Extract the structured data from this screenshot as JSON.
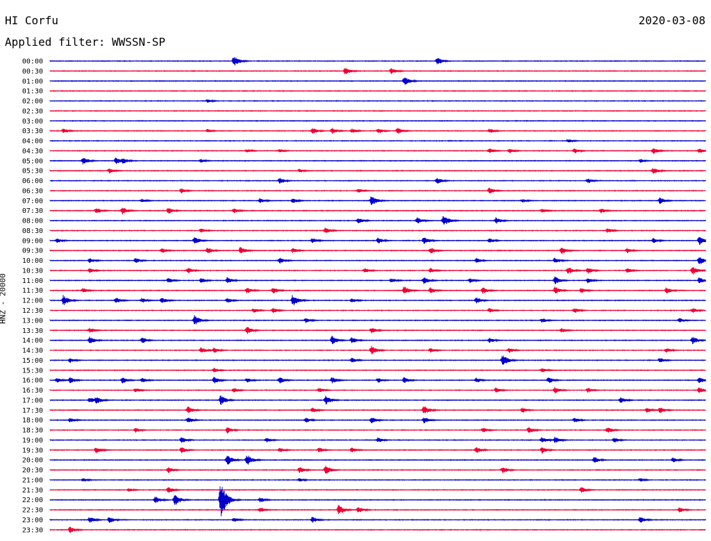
{
  "header": {
    "station": "HI Corfu",
    "date": "2020-03-08",
    "filter": "Applied filter: WWSSN-SP",
    "channel": "HNZ - 20000"
  },
  "chart_data": {
    "type": "line",
    "title": "HI Corfu",
    "subtitle": "Applied filter: WWSSN-SP",
    "date": "2020-03-08",
    "ylabel": "HNZ - 20000",
    "row_labels": [
      "00:00",
      "00:30",
      "01:00",
      "01:30",
      "02:00",
      "02:30",
      "03:00",
      "03:30",
      "04:00",
      "04:30",
      "05:00",
      "05:30",
      "06:00",
      "06:30",
      "07:00",
      "07:30",
      "08:00",
      "08:30",
      "09:00",
      "09:30",
      "10:00",
      "10:30",
      "11:00",
      "11:30",
      "12:00",
      "12:30",
      "13:00",
      "13:30",
      "14:00",
      "14:30",
      "15:00",
      "15:30",
      "16:00",
      "16:30",
      "17:00",
      "17:30",
      "18:00",
      "18:30",
      "19:00",
      "19:30",
      "20:00",
      "20:30",
      "21:00",
      "21:30",
      "22:00",
      "22:30",
      "23:00",
      "23:30"
    ],
    "row_colors": [
      "#0000cc",
      "#ee0033"
    ],
    "row_minutes": 30,
    "events": [
      [
        [
          0.28,
          8
        ],
        [
          0.59,
          6
        ]
      ],
      [
        [
          0.45,
          6
        ],
        [
          0.52,
          5
        ]
      ],
      [
        [
          0.54,
          7
        ]
      ],
      [],
      [
        [
          0.24,
          3
        ]
      ],
      [],
      [],
      [
        [
          0.02,
          4
        ],
        [
          0.24,
          3
        ],
        [
          0.4,
          5
        ],
        [
          0.43,
          5
        ],
        [
          0.46,
          4
        ],
        [
          0.5,
          4
        ],
        [
          0.53,
          5
        ],
        [
          0.67,
          4
        ]
      ],
      [
        [
          0.79,
          3
        ]
      ],
      [
        [
          0.3,
          3
        ],
        [
          0.35,
          3
        ],
        [
          0.67,
          4
        ],
        [
          0.7,
          4
        ],
        [
          0.8,
          4
        ],
        [
          0.92,
          5
        ],
        [
          0.99,
          4
        ]
      ],
      [
        [
          0.05,
          6
        ],
        [
          0.1,
          5
        ],
        [
          0.11,
          5
        ],
        [
          0.23,
          3
        ],
        [
          0.9,
          3
        ]
      ],
      [
        [
          0.09,
          4
        ],
        [
          0.38,
          3
        ],
        [
          0.92,
          5
        ]
      ],
      [
        [
          0.35,
          5
        ],
        [
          0.59,
          5
        ],
        [
          0.82,
          4
        ]
      ],
      [
        [
          0.2,
          4
        ],
        [
          0.47,
          4
        ],
        [
          0.67,
          5
        ]
      ],
      [
        [
          0.14,
          3
        ],
        [
          0.32,
          4
        ],
        [
          0.37,
          4
        ],
        [
          0.49,
          8
        ],
        [
          0.72,
          3
        ],
        [
          0.93,
          5
        ]
      ],
      [
        [
          0.07,
          5
        ],
        [
          0.11,
          6
        ],
        [
          0.18,
          5
        ],
        [
          0.28,
          4
        ],
        [
          0.75,
          4
        ],
        [
          0.84,
          4
        ]
      ],
      [
        [
          0.47,
          5
        ],
        [
          0.56,
          5
        ],
        [
          0.6,
          9
        ],
        [
          0.68,
          5
        ]
      ],
      [
        [
          0.23,
          4
        ],
        [
          0.42,
          5
        ],
        [
          0.85,
          4
        ]
      ],
      [
        [
          0.01,
          4
        ],
        [
          0.22,
          6
        ],
        [
          0.4,
          4
        ],
        [
          0.5,
          5
        ],
        [
          0.57,
          6
        ],
        [
          0.67,
          4
        ],
        [
          0.92,
          4
        ],
        [
          0.99,
          7
        ]
      ],
      [
        [
          0.17,
          4
        ],
        [
          0.24,
          5
        ],
        [
          0.29,
          6
        ],
        [
          0.37,
          4
        ],
        [
          0.58,
          5
        ],
        [
          0.78,
          6
        ],
        [
          0.88,
          4
        ]
      ],
      [
        [
          0.06,
          4
        ],
        [
          0.13,
          4
        ],
        [
          0.35,
          5
        ],
        [
          0.65,
          4
        ],
        [
          0.77,
          5
        ],
        [
          0.99,
          7
        ]
      ],
      [
        [
          0.06,
          4
        ],
        [
          0.21,
          5
        ],
        [
          0.48,
          4
        ],
        [
          0.58,
          4
        ],
        [
          0.79,
          6
        ],
        [
          0.82,
          5
        ],
        [
          0.88,
          4
        ],
        [
          0.98,
          7
        ]
      ],
      [
        [
          0.18,
          4
        ],
        [
          0.23,
          4
        ],
        [
          0.27,
          5
        ],
        [
          0.52,
          4
        ],
        [
          0.57,
          6
        ],
        [
          0.64,
          4
        ],
        [
          0.77,
          6
        ],
        [
          0.82,
          4
        ],
        [
          0.99,
          5
        ]
      ],
      [
        [
          0.05,
          4
        ],
        [
          0.3,
          5
        ],
        [
          0.34,
          5
        ],
        [
          0.54,
          7
        ],
        [
          0.58,
          5
        ],
        [
          0.66,
          5
        ],
        [
          0.77,
          6
        ],
        [
          0.81,
          4
        ],
        [
          0.94,
          5
        ]
      ],
      [
        [
          0.02,
          8
        ],
        [
          0.1,
          5
        ],
        [
          0.14,
          4
        ],
        [
          0.17,
          5
        ],
        [
          0.27,
          4
        ],
        [
          0.37,
          9
        ],
        [
          0.46,
          4
        ],
        [
          0.65,
          5
        ]
      ],
      [
        [
          0.31,
          4
        ],
        [
          0.34,
          4
        ],
        [
          0.67,
          4
        ],
        [
          0.8,
          4
        ],
        [
          0.98,
          4
        ]
      ],
      [
        [
          0.22,
          8
        ],
        [
          0.39,
          4
        ],
        [
          0.75,
          4
        ],
        [
          0.96,
          4
        ]
      ],
      [
        [
          0.06,
          4
        ],
        [
          0.3,
          6
        ],
        [
          0.49,
          5
        ],
        [
          0.78,
          4
        ]
      ],
      [
        [
          0.06,
          6
        ],
        [
          0.14,
          5
        ],
        [
          0.43,
          7
        ],
        [
          0.46,
          5
        ],
        [
          0.67,
          4
        ],
        [
          0.98,
          6
        ]
      ],
      [
        [
          0.23,
          5
        ],
        [
          0.25,
          4
        ],
        [
          0.49,
          7
        ],
        [
          0.58,
          4
        ],
        [
          0.7,
          4
        ],
        [
          0.94,
          4
        ]
      ],
      [
        [
          0.03,
          4
        ],
        [
          0.46,
          4
        ],
        [
          0.69,
          9
        ],
        [
          0.93,
          4
        ]
      ],
      [
        [
          0.25,
          4
        ],
        [
          0.75,
          4
        ]
      ],
      [
        [
          0.01,
          4
        ],
        [
          0.03,
          5
        ],
        [
          0.11,
          5
        ],
        [
          0.14,
          4
        ],
        [
          0.25,
          5
        ],
        [
          0.3,
          4
        ],
        [
          0.35,
          5
        ],
        [
          0.43,
          5
        ],
        [
          0.5,
          4
        ],
        [
          0.54,
          5
        ],
        [
          0.65,
          4
        ],
        [
          0.76,
          5
        ],
        [
          0.99,
          5
        ]
      ],
      [
        [
          0.13,
          4
        ],
        [
          0.28,
          4
        ],
        [
          0.41,
          4
        ],
        [
          0.68,
          4
        ],
        [
          0.77,
          5
        ],
        [
          0.82,
          4
        ],
        [
          0.99,
          5
        ]
      ],
      [
        [
          0.06,
          5
        ],
        [
          0.07,
          6
        ],
        [
          0.26,
          8
        ],
        [
          0.42,
          7
        ],
        [
          0.87,
          5
        ]
      ],
      [
        [
          0.21,
          6
        ],
        [
          0.4,
          4
        ],
        [
          0.57,
          7
        ],
        [
          0.72,
          4
        ],
        [
          0.91,
          4
        ],
        [
          0.93,
          5
        ]
      ],
      [
        [
          0.03,
          4
        ],
        [
          0.21,
          5
        ],
        [
          0.39,
          4
        ],
        [
          0.49,
          5
        ],
        [
          0.57,
          5
        ],
        [
          0.8,
          4
        ]
      ],
      [
        [
          0.13,
          4
        ],
        [
          0.27,
          5
        ],
        [
          0.66,
          4
        ],
        [
          0.73,
          5
        ],
        [
          0.85,
          5
        ]
      ],
      [
        [
          0.2,
          5
        ],
        [
          0.33,
          4
        ],
        [
          0.5,
          4
        ],
        [
          0.75,
          5
        ],
        [
          0.77,
          5
        ],
        [
          0.86,
          4
        ]
      ],
      [
        [
          0.07,
          5
        ],
        [
          0.2,
          5
        ],
        [
          0.35,
          4
        ],
        [
          0.41,
          4
        ],
        [
          0.46,
          4
        ],
        [
          0.65,
          5
        ],
        [
          0.75,
          5
        ]
      ],
      [
        [
          0.27,
          8
        ],
        [
          0.3,
          9
        ],
        [
          0.83,
          5
        ],
        [
          0.95,
          4
        ]
      ],
      [
        [
          0.18,
          5
        ],
        [
          0.38,
          5
        ],
        [
          0.42,
          7
        ],
        [
          0.69,
          5
        ]
      ],
      [
        [
          0.05,
          3
        ],
        [
          0.38,
          3
        ],
        [
          0.9,
          3
        ]
      ],
      [
        [
          0.12,
          3
        ],
        [
          0.18,
          5
        ],
        [
          0.81,
          5
        ]
      ],
      [
        [
          0.16,
          6
        ],
        [
          0.19,
          9
        ],
        [
          0.26,
          28
        ],
        [
          0.32,
          4
        ]
      ],
      [
        [
          0.32,
          4
        ],
        [
          0.44,
          8
        ],
        [
          0.47,
          5
        ],
        [
          0.96,
          4
        ]
      ],
      [
        [
          0.06,
          5
        ],
        [
          0.09,
          5
        ],
        [
          0.28,
          4
        ],
        [
          0.4,
          5
        ],
        [
          0.9,
          5
        ]
      ],
      [
        [
          0.03,
          5
        ]
      ]
    ]
  }
}
